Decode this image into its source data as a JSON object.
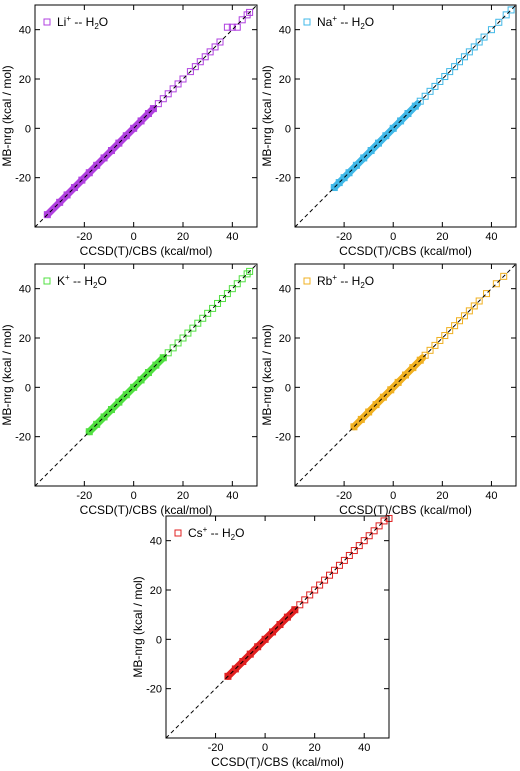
{
  "chart_data": [
    {
      "type": "scatter",
      "xlabel": "CCSD(T)/CBS (kcal/mol)",
      "ylabel": "MB-nrg (kcal / mol)",
      "xlim": [
        -40,
        50
      ],
      "ylim": [
        -40,
        50
      ],
      "xticks": [
        -20,
        0,
        20,
        40
      ],
      "yticks": [
        -20,
        0,
        20,
        40
      ],
      "legend_placement": "top-left",
      "legend": {
        "ion": "Li",
        "charge": "+",
        "sep": " -- H",
        "sub": "2",
        "tail": "O"
      },
      "color": "#b040e0",
      "reference_line": "y = x (dashed)",
      "dense_range": [
        -35,
        8
      ],
      "series": [
        {
          "x": [
            -35,
            -30,
            -27,
            -24,
            -21,
            -18,
            -15,
            -12,
            -9,
            -6,
            -3,
            0,
            3,
            6,
            8,
            10,
            12,
            14,
            16,
            18,
            20,
            23,
            25,
            27,
            29,
            31,
            33,
            35,
            38,
            40,
            42,
            44,
            46,
            47
          ],
          "y": [
            -35,
            -30,
            -27,
            -24,
            -21,
            -18,
            -15,
            -12,
            -9,
            -6,
            -3,
            0,
            3,
            6,
            8,
            10,
            12,
            14,
            16,
            18,
            20,
            23,
            25,
            27,
            29,
            31,
            33,
            35,
            41,
            41,
            41,
            44,
            46,
            47
          ]
        }
      ]
    },
    {
      "type": "scatter",
      "xlabel": "CCSD(T)/CBS (kcal/mol)",
      "ylabel": "MB-nrg (kcal / mol)",
      "xlim": [
        -40,
        50
      ],
      "ylim": [
        -40,
        50
      ],
      "xticks": [
        -20,
        0,
        20,
        40
      ],
      "yticks": [
        -20,
        0,
        20,
        40
      ],
      "legend_placement": "top-left",
      "legend": {
        "ion": "Na",
        "charge": "+",
        "sep": " -- H",
        "sub": "2",
        "tail": "O"
      },
      "color": "#40b8e8",
      "reference_line": "y = x (dashed)",
      "dense_range": [
        -24,
        10
      ],
      "series": [
        {
          "x": [
            -24,
            -22,
            -20,
            -18,
            -15,
            -12,
            -9,
            -6,
            -3,
            0,
            3,
            6,
            9,
            11,
            13,
            15,
            17,
            19,
            21,
            23,
            25,
            27,
            29,
            31,
            33,
            35,
            37,
            40,
            43,
            46,
            48
          ],
          "y": [
            -24,
            -22,
            -20,
            -18,
            -15,
            -12,
            -9,
            -6,
            -3,
            0,
            3,
            6,
            9,
            11,
            13,
            15,
            17,
            19,
            21,
            23,
            25,
            27,
            29,
            31,
            33,
            35,
            37,
            40,
            43,
            46,
            48
          ]
        }
      ]
    },
    {
      "type": "scatter",
      "xlabel": "CCSD(T)/CBS (kcal/mol)",
      "ylabel": "MB-nrg (kcal / mol)",
      "xlim": [
        -40,
        50
      ],
      "ylim": [
        -40,
        50
      ],
      "xticks": [
        -20,
        0,
        20,
        40
      ],
      "yticks": [
        -20,
        0,
        20,
        40
      ],
      "legend_placement": "top-left",
      "legend": {
        "ion": "K",
        "charge": "+",
        "sep": " -- H",
        "sub": "2",
        "tail": "O"
      },
      "color": "#50e040",
      "reference_line": "y = x (dashed)",
      "dense_range": [
        -18,
        12
      ],
      "series": [
        {
          "x": [
            -18,
            -15,
            -12,
            -9,
            -6,
            -3,
            0,
            3,
            6,
            9,
            12,
            14,
            16,
            18,
            20,
            22,
            24,
            26,
            28,
            30,
            32,
            34,
            36,
            38,
            40,
            42,
            44,
            46,
            47
          ],
          "y": [
            -18,
            -15,
            -12,
            -9,
            -6,
            -3,
            0,
            3,
            6,
            9,
            12,
            14,
            16,
            18,
            20,
            22,
            24,
            26,
            28,
            30,
            32,
            34,
            36,
            38,
            40,
            42,
            44,
            46,
            47
          ]
        }
      ]
    },
    {
      "type": "scatter",
      "xlabel": "CCSD(T)/CBS (kcal/mol)",
      "ylabel": "MB-nrg (kcal / mol)",
      "xlim": [
        -40,
        50
      ],
      "ylim": [
        -40,
        50
      ],
      "xticks": [
        -20,
        0,
        20,
        40
      ],
      "yticks": [
        -20,
        0,
        20,
        40
      ],
      "legend_placement": "top-left",
      "legend": {
        "ion": "Rb",
        "charge": "+",
        "sep": " -- H",
        "sub": "2",
        "tail": "O"
      },
      "color": "#f0b020",
      "reference_line": "y = x (dashed)",
      "dense_range": [
        -16,
        12
      ],
      "series": [
        {
          "x": [
            -16,
            -13,
            -10,
            -7,
            -4,
            -1,
            2,
            5,
            8,
            11,
            13,
            15,
            17,
            19,
            21,
            23,
            25,
            27,
            29,
            31,
            33,
            35,
            38,
            42,
            45
          ],
          "y": [
            -16,
            -13,
            -10,
            -7,
            -4,
            -1,
            2,
            5,
            8,
            11,
            13,
            15,
            17,
            19,
            21,
            23,
            25,
            27,
            29,
            31,
            33,
            35,
            38,
            42,
            45
          ]
        }
      ]
    },
    {
      "type": "scatter",
      "xlabel": "CCSD(T)/CBS (kcal/mol)",
      "ylabel": "MB-nrg (kcal / mol)",
      "xlim": [
        -40,
        50
      ],
      "ylim": [
        -40,
        50
      ],
      "xticks": [
        -20,
        0,
        20,
        40
      ],
      "yticks": [
        -20,
        0,
        20,
        40
      ],
      "legend_placement": "top-left",
      "legend": {
        "ion": "Cs",
        "charge": "+",
        "sep": " -- H",
        "sub": "2",
        "tail": "O"
      },
      "color": "#e02020",
      "reference_line": "y = x (dashed)",
      "dense_range": [
        -15,
        12
      ],
      "series": [
        {
          "x": [
            -15,
            -12,
            -9,
            -6,
            -3,
            0,
            3,
            6,
            9,
            12,
            14,
            16,
            18,
            20,
            22,
            24,
            26,
            28,
            30,
            32,
            34,
            36,
            38,
            40,
            42,
            44,
            46,
            48,
            50
          ],
          "y": [
            -15,
            -12,
            -9,
            -6,
            -3,
            0,
            3,
            6,
            9,
            12,
            14,
            16,
            18,
            20,
            22,
            24,
            26,
            28,
            30,
            32,
            34,
            36,
            38,
            40,
            42,
            44,
            46,
            48,
            49
          ]
        }
      ]
    }
  ]
}
